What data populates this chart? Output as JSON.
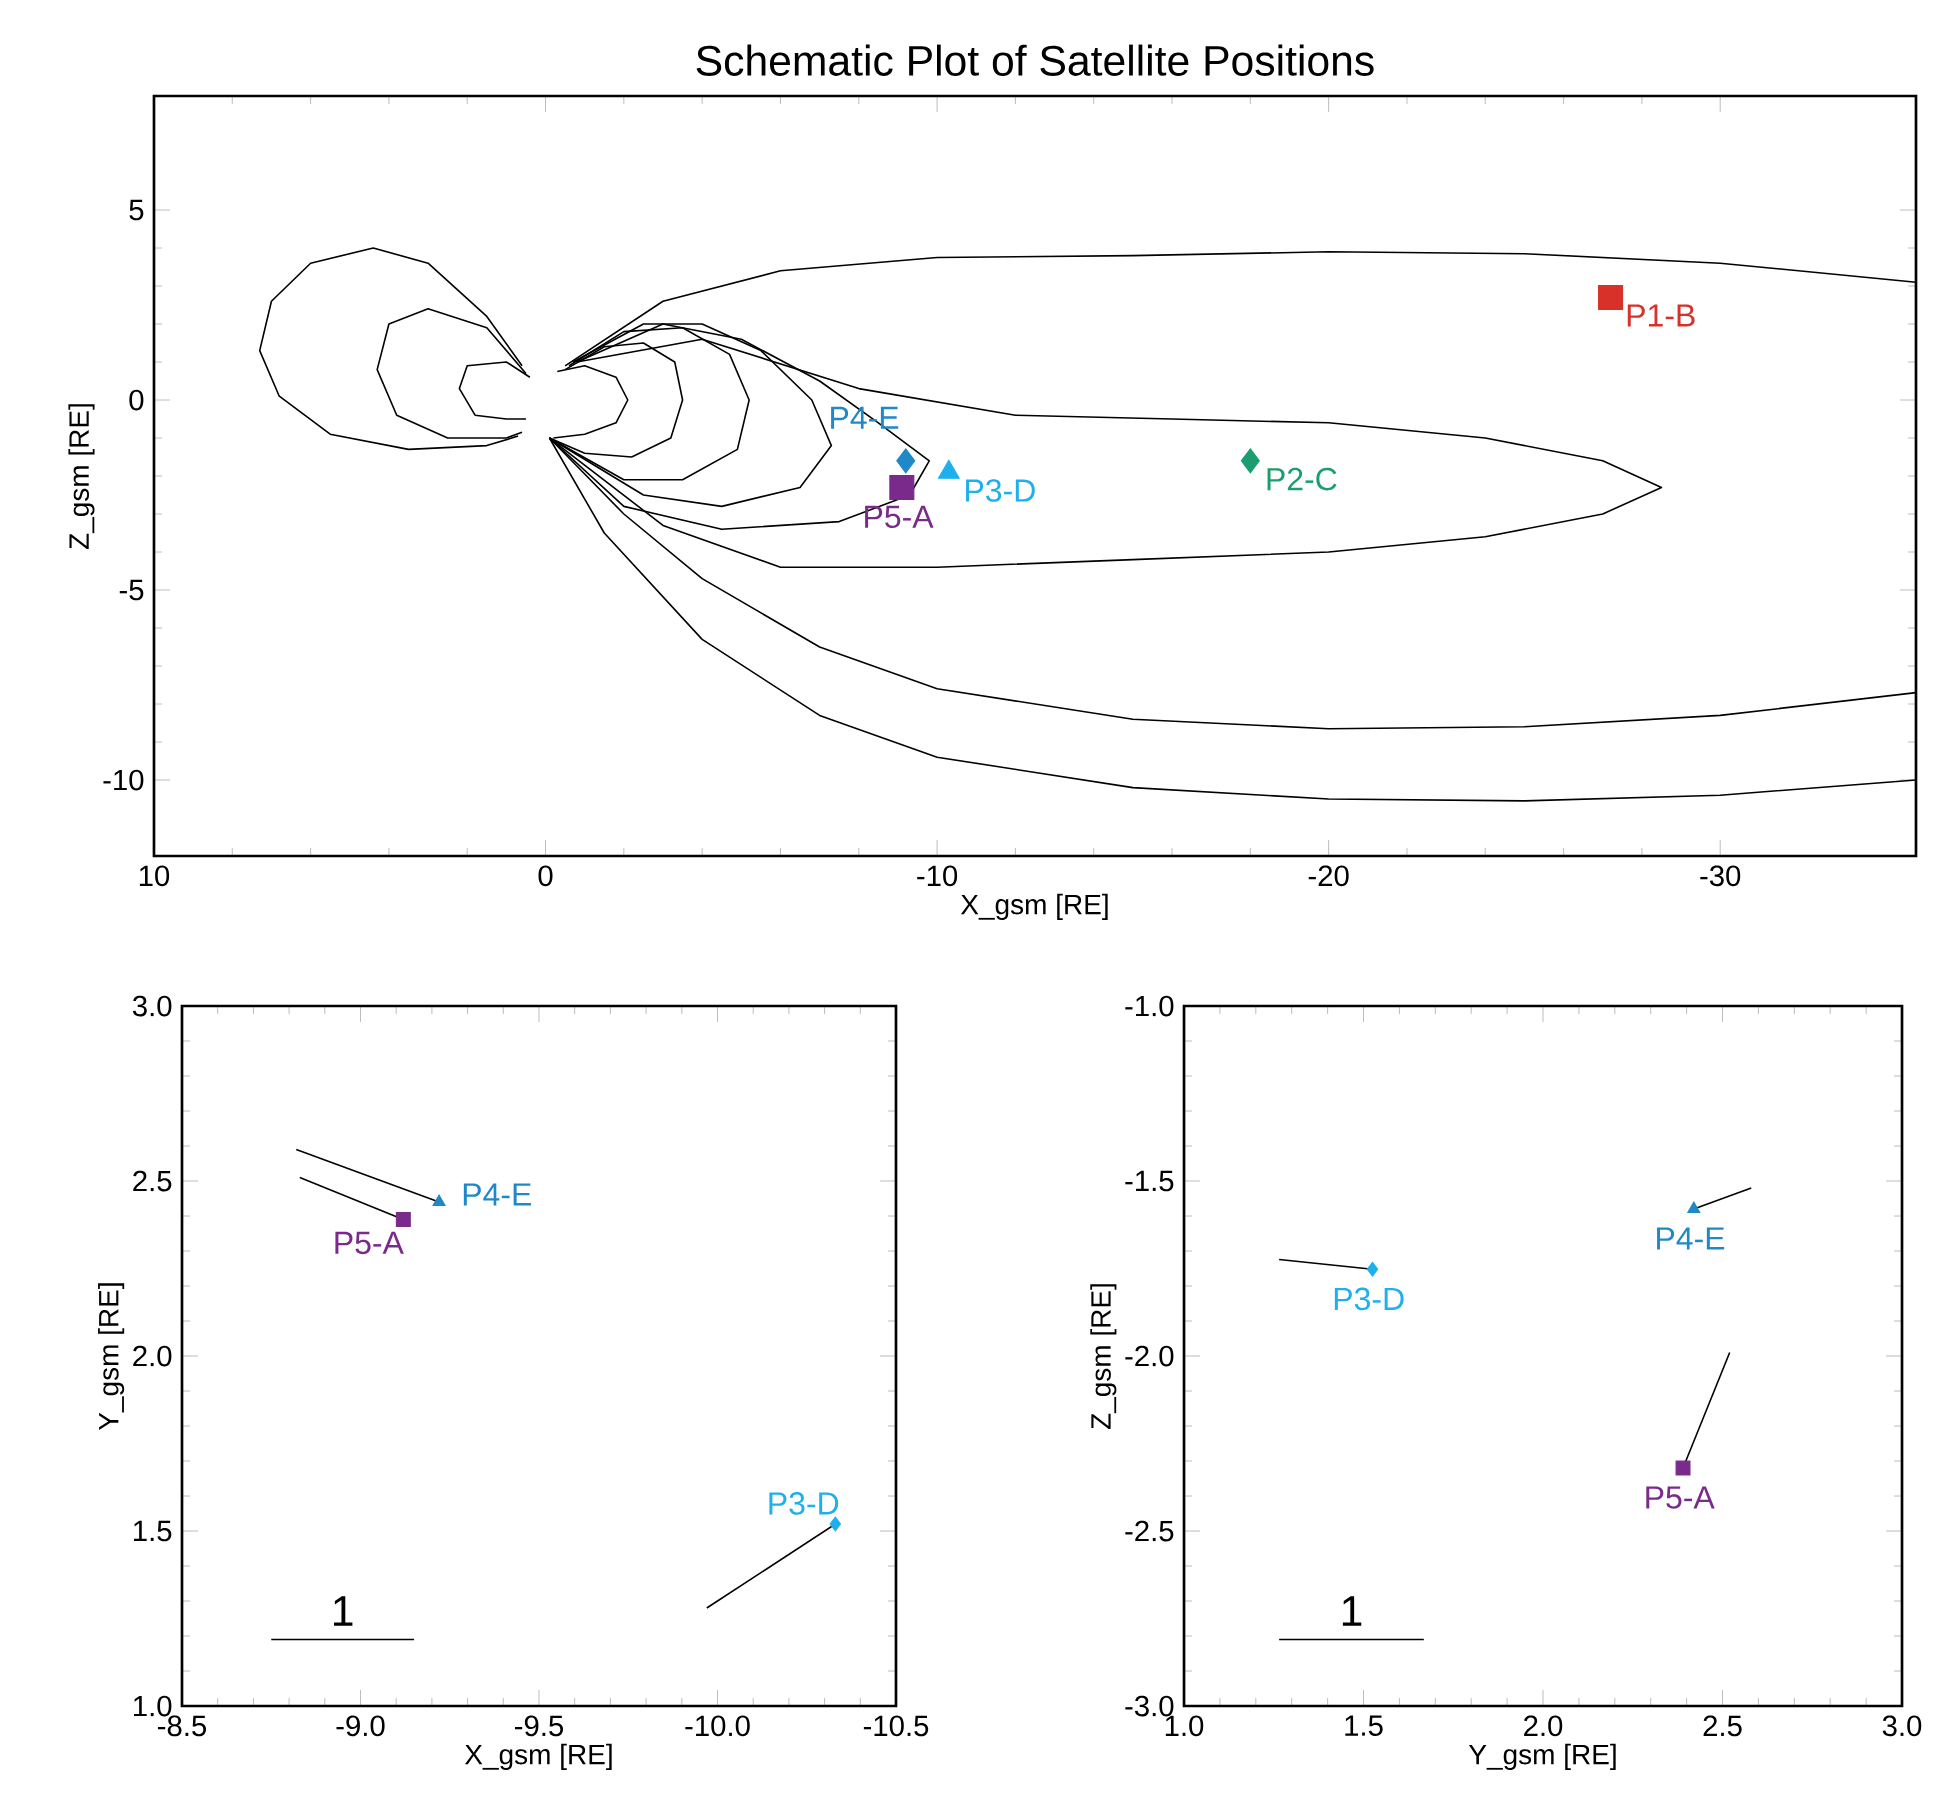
{
  "chart_data": [
    {
      "type": "scatter",
      "title": "Schematic Plot of Satellite Positions",
      "xlabel": "X_gsm [RE]",
      "ylabel": "Z_gsm [RE]",
      "xlim": [
        10,
        -35
      ],
      "ylim": [
        -12,
        8
      ],
      "xticks": [
        10,
        0,
        -10,
        -20,
        -30
      ],
      "yticks": [
        5,
        0,
        -5,
        -10
      ],
      "series": [
        {
          "type": "line",
          "color": "#000000",
          "x": [
            0.6,
            1.5,
            3,
            4.4,
            6,
            7,
            7.3,
            6.8,
            5.5,
            3.5,
            1.5,
            0.7
          ],
          "values": [
            0.9,
            2.2,
            3.6,
            4.0,
            3.6,
            2.6,
            1.3,
            0.1,
            -0.9,
            -1.3,
            -1.2,
            -0.95
          ]
        },
        {
          "type": "line",
          "color": "#000000",
          "x": [
            0.5,
            1.5,
            3,
            4,
            4.3,
            3.8,
            2.5,
            1,
            0.6
          ],
          "values": [
            0.7,
            1.9,
            2.4,
            2.0,
            0.8,
            -0.4,
            -1.0,
            -1.0,
            -0.85
          ]
        },
        {
          "type": "line",
          "color": "#000000",
          "x": [
            0.4,
            1,
            2,
            2.2,
            1.8,
            1,
            0.5
          ],
          "values": [
            0.6,
            1.0,
            0.9,
            0.3,
            -0.4,
            -0.5,
            -0.5
          ]
        },
        {
          "type": "line",
          "color": "#000000",
          "x": [
            -0.3,
            -1,
            -1.8,
            -2.1,
            -1.8,
            -1,
            -0.2
          ],
          "values": [
            0.75,
            0.9,
            0.6,
            0,
            -0.6,
            -0.9,
            -1.0
          ]
        },
        {
          "type": "line",
          "color": "#000000",
          "x": [
            -0.5,
            -1.5,
            -2.5,
            -3.3,
            -3.5,
            -3.2,
            -2.2,
            -1,
            -0.1
          ],
          "values": [
            0.8,
            1.4,
            1.5,
            1.0,
            0,
            -1.0,
            -1.5,
            -1.4,
            -1.0
          ]
        },
        {
          "type": "line",
          "color": "#000000",
          "x": [
            -0.6,
            -2,
            -3.5,
            -4.7,
            -5.2,
            -4.9,
            -3.5,
            -2,
            -0.1
          ],
          "values": [
            0.9,
            1.8,
            1.9,
            1.2,
            0,
            -1.3,
            -2.1,
            -2.1,
            -1.0
          ]
        },
        {
          "type": "line",
          "color": "#000000",
          "x": [
            -0.7,
            -2.5,
            -4,
            -5.5,
            -6.8,
            -7.3,
            -6.5,
            -4.5,
            -2.5,
            -0.1
          ],
          "values": [
            1.0,
            2.0,
            2.0,
            1.3,
            0,
            -1.2,
            -2.3,
            -2.8,
            -2.5,
            -1.0
          ]
        },
        {
          "type": "line",
          "color": "#000000",
          "x": [
            -0.8,
            -3,
            -5,
            -7,
            -8.5,
            -9.8,
            -9.3,
            -7.5,
            -4.5,
            -2,
            -0.1
          ],
          "values": [
            1.0,
            2.0,
            1.6,
            0.5,
            -0.6,
            -1.6,
            -2.5,
            -3.2,
            -3.4,
            -2.8,
            -1.0
          ]
        },
        {
          "type": "line",
          "color": "#000000",
          "x": [
            -0.8,
            -4,
            -8,
            -12,
            -16,
            -20,
            -24,
            -27,
            -28.5,
            -27,
            -24,
            -20,
            -15,
            -10,
            -6,
            -3,
            -0.1
          ],
          "values": [
            1.0,
            1.6,
            0.3,
            -0.4,
            -0.5,
            -0.6,
            -1.0,
            -1.6,
            -2.3,
            -3.0,
            -3.6,
            -4.0,
            -4.2,
            -4.4,
            -4.4,
            -3.3,
            -1.0
          ]
        },
        {
          "type": "line",
          "color": "#000000",
          "x": [
            -0.5,
            -3,
            -6,
            -10,
            -15,
            -20,
            -25,
            -30,
            -35
          ],
          "values": [
            0.9,
            2.6,
            3.4,
            3.75,
            3.8,
            3.9,
            3.85,
            3.6,
            3.1
          ]
        },
        {
          "type": "line",
          "color": "#000000",
          "x": [
            -0.1,
            -2,
            -4,
            -7,
            -10,
            -15,
            -20,
            -25,
            -30,
            -35
          ],
          "values": [
            -1.0,
            -3.0,
            -4.7,
            -6.5,
            -7.6,
            -8.4,
            -8.65,
            -8.6,
            -8.3,
            -7.7
          ]
        },
        {
          "type": "line",
          "color": "#000000",
          "x": [
            -0.1,
            -1.5,
            -4,
            -7,
            -10,
            -15,
            -20,
            -25,
            -30,
            -35
          ],
          "values": [
            -1.0,
            -3.5,
            -6.3,
            -8.3,
            -9.4,
            -10.2,
            -10.5,
            -10.55,
            -10.4,
            -10.0
          ]
        },
        {
          "name": "P1-B",
          "color": "#d7312a",
          "marker": "square",
          "x": [
            -27.2
          ],
          "values": [
            2.7
          ]
        },
        {
          "name": "P2-C",
          "color": "#1a9e6e",
          "marker": "diamond",
          "x": [
            -18
          ],
          "values": [
            -1.6
          ]
        },
        {
          "name": "P3-D",
          "color": "#1eb0ec",
          "marker": "triangle",
          "x": [
            -10.3
          ],
          "values": [
            -1.9
          ]
        },
        {
          "name": "P4-E",
          "color": "#1e88c8",
          "marker": "diamond",
          "x": [
            -9.2
          ],
          "values": [
            -1.6
          ]
        },
        {
          "name": "P5-A",
          "color": "#7a2a8a",
          "marker": "square",
          "x": [
            -9.1
          ],
          "values": [
            -2.3
          ]
        }
      ]
    },
    {
      "type": "scatter",
      "xlabel": "X_gsm [RE]",
      "ylabel": "Y_gsm [RE]",
      "xlim": [
        -8.5,
        -10.5
      ],
      "ylim": [
        1,
        3
      ],
      "xticks": [
        -8.5,
        {
          "value": -9,
          "label": "-9.0"
        },
        -9.5,
        {
          "value": -10,
          "label": "-10.0"
        },
        -10.5
      ],
      "yticks": [
        {
          "value": 1,
          "label": "1.0"
        },
        1.5,
        {
          "value": 2,
          "label": "2.0"
        },
        2.5,
        {
          "value": 3,
          "label": "3.0"
        }
      ],
      "annotations": [
        "1"
      ],
      "series": [
        {
          "type": "line",
          "color": "#000000",
          "x": [
            -8.82,
            -9.22
          ],
          "values": [
            2.59,
            2.44
          ]
        },
        {
          "type": "line",
          "color": "#000000",
          "x": [
            -8.83,
            -9.12
          ],
          "values": [
            2.51,
            2.39
          ]
        },
        {
          "type": "line",
          "color": "#000000",
          "x": [
            -9.97,
            -10.33
          ],
          "values": [
            1.28,
            1.52
          ]
        },
        {
          "type": "line",
          "color": "#000000",
          "x": [
            -8.75,
            -9.15
          ],
          "values": [
            1.19,
            1.19
          ]
        },
        {
          "name": "P4-E",
          "color": "#1e88c8",
          "marker": "triangle",
          "x": [
            -9.22
          ],
          "values": [
            2.44
          ]
        },
        {
          "name": "P5-A",
          "color": "#7a2a8a",
          "marker": "square",
          "x": [
            -9.12
          ],
          "values": [
            2.39
          ]
        },
        {
          "name": "P3-D",
          "color": "#1eb0ec",
          "marker": "diamond",
          "x": [
            -10.33
          ],
          "values": [
            1.52
          ]
        }
      ]
    },
    {
      "type": "scatter",
      "xlabel": "Y_gsm [RE]",
      "ylabel": "Z_gsm [RE]",
      "xlim": [
        1,
        3
      ],
      "ylim": [
        -3,
        -1
      ],
      "xticks": [
        {
          "value": 1,
          "label": "1.0"
        },
        1.5,
        {
          "value": 2,
          "label": "2.0"
        },
        2.5,
        {
          "value": 3,
          "label": "3.0"
        }
      ],
      "yticks": [
        {
          "value": -3,
          "label": "-3.0"
        },
        -2.5,
        {
          "value": -2,
          "label": "-2.0"
        },
        -1.5,
        {
          "value": -1,
          "label": "-1.0"
        }
      ],
      "annotations": [
        "1"
      ],
      "series": [
        {
          "type": "line",
          "color": "#000000",
          "x": [
            1.265,
            1.525
          ],
          "values": [
            -1.724,
            -1.752
          ]
        },
        {
          "type": "line",
          "color": "#000000",
          "x": [
            2.58,
            2.42
          ],
          "values": [
            -1.52,
            -1.58
          ]
        },
        {
          "type": "line",
          "color": "#000000",
          "x": [
            2.52,
            2.39
          ],
          "values": [
            -1.99,
            -2.32
          ]
        },
        {
          "type": "line",
          "color": "#000000",
          "x": [
            1.265,
            1.668
          ],
          "values": [
            -2.81,
            -2.81
          ]
        },
        {
          "name": "P3-D",
          "color": "#1eb0ec",
          "marker": "diamond",
          "x": [
            1.525
          ],
          "values": [
            -1.752
          ]
        },
        {
          "name": "P4-E",
          "color": "#1e88c8",
          "marker": "triangle",
          "x": [
            2.42
          ],
          "values": [
            -1.58
          ]
        },
        {
          "name": "P5-A",
          "color": "#7a2a8a",
          "marker": "square",
          "x": [
            2.39
          ],
          "values": [
            -2.32
          ]
        }
      ]
    }
  ]
}
